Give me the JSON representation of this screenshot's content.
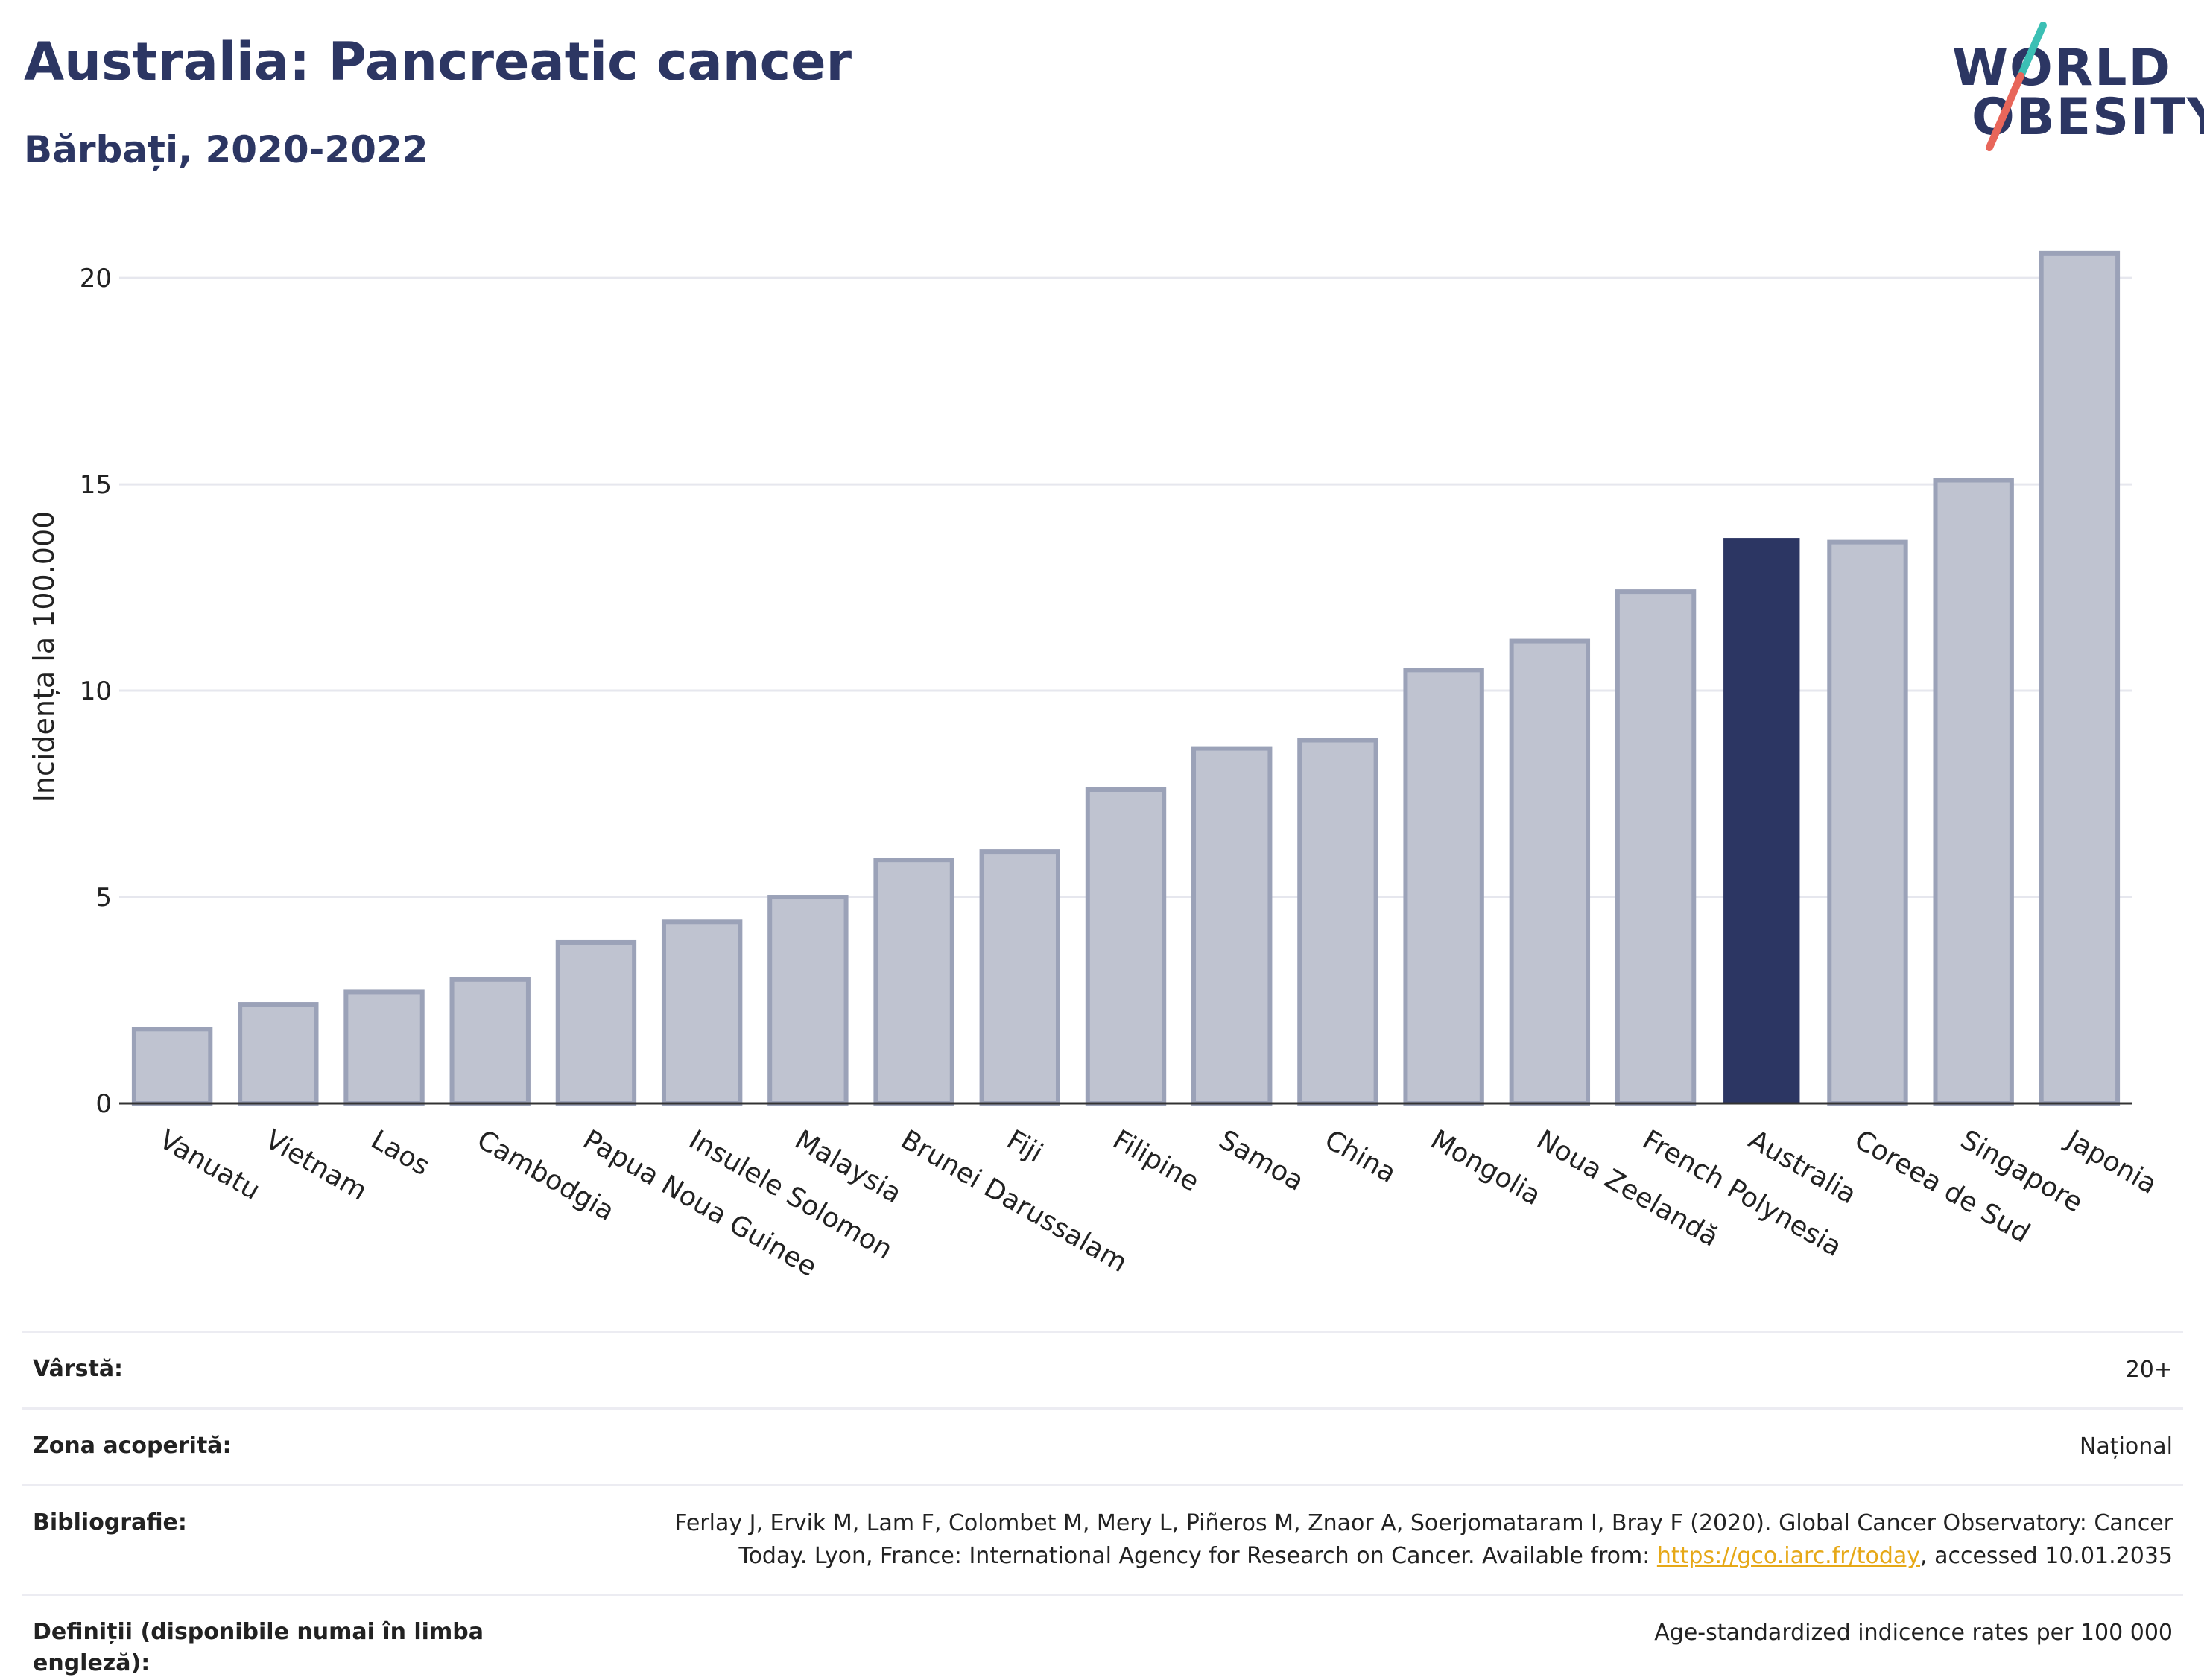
{
  "title": "Australia: Pancreatic cancer",
  "subtitle": "Bărbați, 2020-2022",
  "logo": {
    "line1": "WORLD",
    "line2": "OBESITY",
    "accent_teal": "#3bbfb4",
    "accent_red": "#e8665a"
  },
  "colors": {
    "highlight": "#2c3663",
    "bar_fill": "#bfc3d0",
    "bar_stroke": "#9ba2b8",
    "grid": "#e6e7ee"
  },
  "chart_data": {
    "type": "bar",
    "title": "Australia: Pancreatic cancer",
    "subtitle": "Bărbați, 2020-2022",
    "xlabel": "",
    "ylabel": "Incidența la 100.000",
    "ylim": [
      0,
      21.5
    ],
    "yticks": [
      0,
      5,
      10,
      15,
      20
    ],
    "grid": true,
    "highlight": "Australia",
    "categories": [
      "Vanuatu",
      "Vietnam",
      "Laos",
      "Cambodgia",
      "Papua Noua Guinee",
      "Insulele Solomon",
      "Malaysia",
      "Brunei Darussalam",
      "Fiji",
      "Filipine",
      "Samoa",
      "China",
      "Mongolia",
      "Noua Zeelandă",
      "French Polynesia",
      "Australia",
      "Coreea de Sud",
      "Singapore",
      "Japonia"
    ],
    "values": [
      1.8,
      2.4,
      2.7,
      3.0,
      3.9,
      4.4,
      5.0,
      5.9,
      6.1,
      7.6,
      8.6,
      8.8,
      10.5,
      11.2,
      12.4,
      13.7,
      13.6,
      15.1,
      20.6
    ]
  },
  "info": [
    {
      "label": "Vârstă:",
      "value": "20+"
    },
    {
      "label": "Zona acoperită:",
      "value": "Național"
    },
    {
      "label": "Bibliografie:",
      "value_line1": "Ferlay J, Ervik M, Lam F, Colombet M, Mery L, Piñeros M, Znaor A, Soerjomataram I, Bray F (2020). Global Cancer Observatory: Cancer",
      "value_line2_pre": "Today. Lyon, France: International Agency for Research on Cancer. Available from: ",
      "link": "https://gco.iarc.fr/today",
      "value_line2_post": ", accessed 10.01.2035"
    },
    {
      "label": "Definiții (disponibile numai în limba engleză):",
      "value": "Age-standardized indicence rates per 100 000"
    }
  ]
}
